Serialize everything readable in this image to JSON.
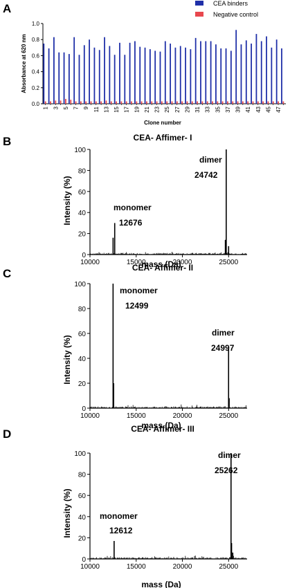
{
  "panels": {
    "a": {
      "letter": "A"
    },
    "b": {
      "letter": "B"
    },
    "c": {
      "letter": "C"
    },
    "d": {
      "letter": "D"
    }
  },
  "chart_data": [
    {
      "type": "bar",
      "panel": "A",
      "title": "",
      "xlabel": "Clone number",
      "ylabel": "Absorbance at 620 nm",
      "ylim": [
        0,
        1.0
      ],
      "yticks": [
        "0.0",
        "0.2",
        "0.4",
        "0.6",
        "0.8",
        "1.0"
      ],
      "categories": [
        "1",
        "2",
        "3",
        "4",
        "5",
        "6",
        "7",
        "8",
        "9",
        "10",
        "11",
        "12",
        "13",
        "14",
        "15",
        "16",
        "17",
        "18",
        "19",
        "20",
        "21",
        "22",
        "23",
        "24",
        "25",
        "26",
        "27",
        "28",
        "29",
        "30",
        "31",
        "32",
        "33",
        "34",
        "35",
        "36",
        "37",
        "38",
        "39",
        "40",
        "41",
        "42",
        "43",
        "44",
        "45",
        "46",
        "47",
        "48"
      ],
      "xtick_labels": [
        "1",
        "3",
        "5",
        "7",
        "9",
        "11",
        "13",
        "15",
        "17",
        "19",
        "21",
        "23",
        "25",
        "27",
        "29",
        "31",
        "33",
        "35",
        "37",
        "39",
        "41",
        "43",
        "45",
        "47"
      ],
      "legend_position": "top-right",
      "series": [
        {
          "name": "CEA binders",
          "color": "#1f2fa8",
          "values": [
            0.75,
            0.69,
            0.83,
            0.64,
            0.64,
            0.62,
            0.83,
            0.61,
            0.73,
            0.8,
            0.7,
            0.67,
            0.83,
            0.72,
            0.61,
            0.76,
            0.61,
            0.76,
            0.78,
            0.71,
            0.7,
            0.68,
            0.66,
            0.65,
            0.78,
            0.75,
            0.7,
            0.72,
            0.7,
            0.68,
            0.82,
            0.78,
            0.78,
            0.78,
            0.74,
            0.69,
            0.69,
            0.66,
            0.92,
            0.74,
            0.79,
            0.75,
            0.87,
            0.78,
            0.84,
            0.7,
            0.8,
            0.69
          ]
        },
        {
          "name": "Negative control",
          "color": "#e8484e",
          "values": [
            0.03,
            0.03,
            0.04,
            0.04,
            0.06,
            0.05,
            0.03,
            0.03,
            0.03,
            0.03,
            0.03,
            0.03,
            0.04,
            0.03,
            0.03,
            0.03,
            0.03,
            0.03,
            0.03,
            0.03,
            0.03,
            0.03,
            0.03,
            0.03,
            0.03,
            0.03,
            0.03,
            0.03,
            0.03,
            0.03,
            0.03,
            0.03,
            0.03,
            0.03,
            0.03,
            0.03,
            0.03,
            0.03,
            0.03,
            0.03,
            0.03,
            0.03,
            0.03,
            0.03,
            0.03,
            0.03,
            0.03,
            0.03
          ]
        }
      ]
    },
    {
      "type": "line",
      "panel": "B",
      "title": "CEA- Affimer- I",
      "xlabel": "mass (Da)",
      "ylabel": "Intensity (%)",
      "xlim": [
        10000,
        27000
      ],
      "ylim": [
        0,
        100
      ],
      "xticks": [
        10000,
        15000,
        20000,
        25000
      ],
      "yticks": [
        0,
        20,
        40,
        60,
        80,
        100
      ],
      "peaks": [
        {
          "mass": 12500,
          "intensity": 16
        },
        {
          "mass": 12676,
          "intensity": 30
        },
        {
          "mass": 24650,
          "intensity": 14
        },
        {
          "mass": 24742,
          "intensity": 100
        },
        {
          "mass": 25000,
          "intensity": 8
        }
      ],
      "annotations": [
        {
          "label": "monomer",
          "value": "12676"
        },
        {
          "label": "dimer",
          "value": "24742"
        }
      ]
    },
    {
      "type": "line",
      "panel": "C",
      "title": "CEA- Affimer- II",
      "xlabel": "mass (Da)",
      "ylabel": "Intensity (%)",
      "xlim": [
        10000,
        27000
      ],
      "ylim": [
        0,
        100
      ],
      "xticks": [
        10000,
        15000,
        20000,
        25000
      ],
      "yticks": [
        0,
        20,
        40,
        60,
        80,
        100
      ],
      "peaks": [
        {
          "mass": 12499,
          "intensity": 100
        },
        {
          "mass": 12560,
          "intensity": 20
        },
        {
          "mass": 24997,
          "intensity": 49
        },
        {
          "mass": 25060,
          "intensity": 8
        }
      ],
      "annotations": [
        {
          "label": "monomer",
          "value": "12499"
        },
        {
          "label": "dimer",
          "value": "24997"
        }
      ]
    },
    {
      "type": "line",
      "panel": "D",
      "title": "CEA- Affimer- III",
      "xlabel": "mass (Da)",
      "ylabel": "Intensity (%)",
      "xlim": [
        10000,
        27000
      ],
      "ylim": [
        0,
        100
      ],
      "xticks": [
        10000,
        15000,
        20000,
        25000
      ],
      "yticks": [
        0,
        20,
        40,
        60,
        80,
        100
      ],
      "peaks": [
        {
          "mass": 12612,
          "intensity": 17
        },
        {
          "mass": 25262,
          "intensity": 100
        },
        {
          "mass": 25320,
          "intensity": 15
        },
        {
          "mass": 25450,
          "intensity": 6
        }
      ],
      "annotations": [
        {
          "label": "monomer",
          "value": "12612"
        },
        {
          "label": "dimer",
          "value": "25262"
        }
      ]
    }
  ]
}
